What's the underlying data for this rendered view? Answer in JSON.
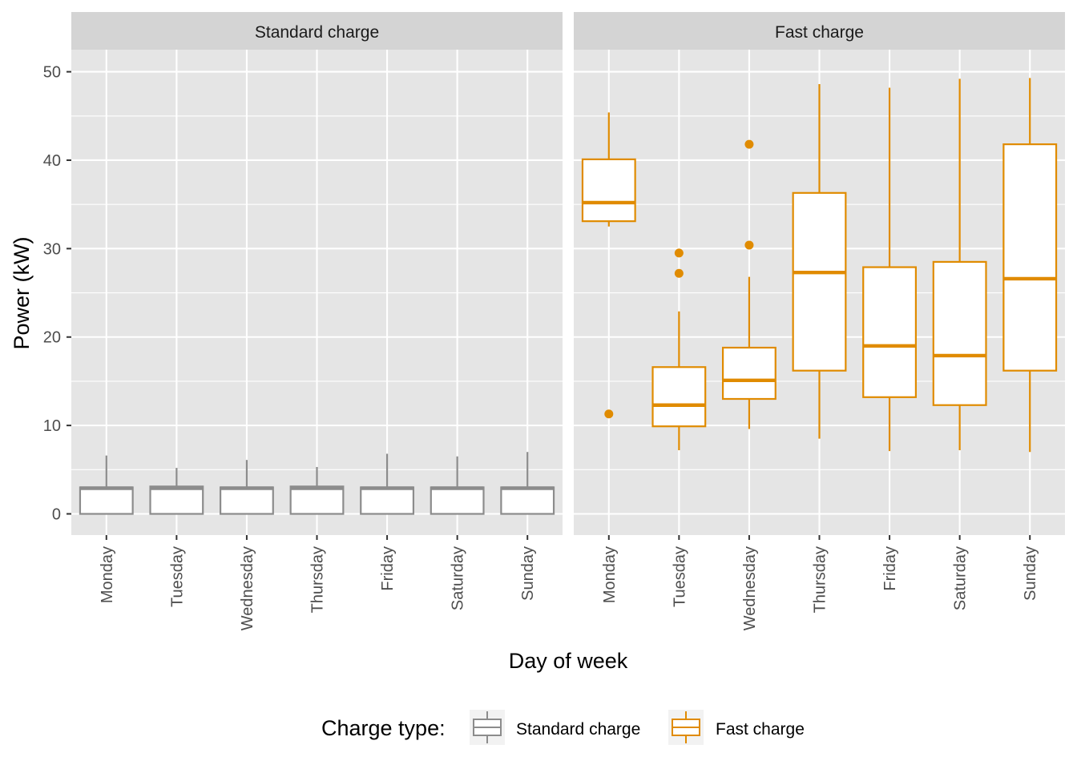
{
  "chart_data": {
    "type": "boxplot",
    "xlabel": "Day of week",
    "ylabel": "Power (kW)",
    "ylim": [
      -2.4,
      52.5
    ],
    "yticks": [
      0,
      10,
      20,
      30,
      40,
      50
    ],
    "grid": true,
    "legend_position": "bottom",
    "legend": {
      "title": "Charge type:",
      "entries": [
        {
          "name": "Standard charge",
          "color": "#8c8c8c"
        },
        {
          "name": "Fast charge",
          "color": "#e08b00"
        }
      ]
    },
    "colors": {
      "panel_bg": "#e5e5e5",
      "strip_bg": "#d4d4d4",
      "grid": "#ffffff",
      "standard": "#8c8c8c",
      "fast": "#e08b00"
    },
    "panels": [
      {
        "title": "Standard charge",
        "series": "Standard charge",
        "color_key": "standard",
        "categories": [
          "Monday",
          "Tuesday",
          "Wednesday",
          "Thursday",
          "Friday",
          "Saturday",
          "Sunday"
        ],
        "boxes": [
          {
            "lower_whisker": 0,
            "q1": 0,
            "median": 2.9,
            "q3": 3.0,
            "upper_whisker": 6.6,
            "outliers": []
          },
          {
            "lower_whisker": 0,
            "q1": 0,
            "median": 2.9,
            "q3": 3.1,
            "upper_whisker": 5.2,
            "outliers": []
          },
          {
            "lower_whisker": 0,
            "q1": 0,
            "median": 2.9,
            "q3": 3.0,
            "upper_whisker": 6.1,
            "outliers": []
          },
          {
            "lower_whisker": 0,
            "q1": 0,
            "median": 2.9,
            "q3": 3.1,
            "upper_whisker": 5.3,
            "outliers": []
          },
          {
            "lower_whisker": 0,
            "q1": 0,
            "median": 2.9,
            "q3": 3.0,
            "upper_whisker": 6.8,
            "outliers": []
          },
          {
            "lower_whisker": 0,
            "q1": 0,
            "median": 2.9,
            "q3": 3.0,
            "upper_whisker": 6.5,
            "outliers": []
          },
          {
            "lower_whisker": 0,
            "q1": 0,
            "median": 2.9,
            "q3": 3.0,
            "upper_whisker": 7.0,
            "outliers": []
          }
        ]
      },
      {
        "title": "Fast charge",
        "series": "Fast charge",
        "color_key": "fast",
        "categories": [
          "Monday",
          "Tuesday",
          "Wednesday",
          "Thursday",
          "Friday",
          "Saturday",
          "Sunday"
        ],
        "boxes": [
          {
            "lower_whisker": 32.5,
            "q1": 33.1,
            "median": 35.2,
            "q3": 40.1,
            "upper_whisker": 45.4,
            "outliers": [
              11.3
            ]
          },
          {
            "lower_whisker": 7.2,
            "q1": 9.9,
            "median": 12.3,
            "q3": 16.6,
            "upper_whisker": 22.9,
            "outliers": [
              27.2,
              29.5
            ]
          },
          {
            "lower_whisker": 9.6,
            "q1": 13.0,
            "median": 15.1,
            "q3": 18.8,
            "upper_whisker": 26.8,
            "outliers": [
              30.4,
              41.8
            ]
          },
          {
            "lower_whisker": 8.5,
            "q1": 16.2,
            "median": 27.3,
            "q3": 36.3,
            "upper_whisker": 48.6,
            "outliers": []
          },
          {
            "lower_whisker": 7.1,
            "q1": 13.2,
            "median": 19.0,
            "q3": 27.9,
            "upper_whisker": 48.2,
            "outliers": []
          },
          {
            "lower_whisker": 7.2,
            "q1": 12.3,
            "median": 17.9,
            "q3": 28.5,
            "upper_whisker": 49.2,
            "outliers": []
          },
          {
            "lower_whisker": 7.0,
            "q1": 16.2,
            "median": 26.6,
            "q3": 41.8,
            "upper_whisker": 49.3,
            "outliers": []
          }
        ]
      }
    ]
  }
}
